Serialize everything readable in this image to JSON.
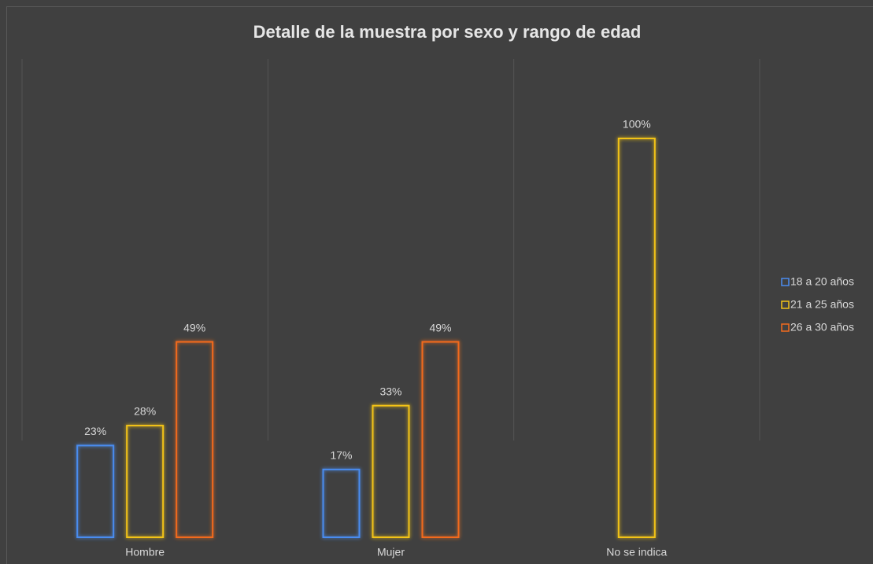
{
  "chart_data": {
    "type": "bar",
    "title": "Detalle de la muestra por sexo y rango de edad",
    "categories": [
      "Hombre",
      "Mujer",
      "No se indica"
    ],
    "series": [
      {
        "name": "18 a 20 años",
        "color": "#4a8cf0",
        "values": [
          23,
          17,
          null
        ],
        "value_labels": [
          "23%",
          "17%",
          null
        ]
      },
      {
        "name": "21 a 25 años",
        "color": "#f2c318",
        "values": [
          28,
          33,
          100
        ],
        "value_labels": [
          "28%",
          "33%",
          "100%"
        ]
      },
      {
        "name": "26 a 30 años",
        "color": "#f26b1d",
        "values": [
          49,
          49,
          null
        ],
        "value_labels": [
          "49%",
          "49%",
          null
        ]
      }
    ],
    "ylim": [
      0,
      100
    ],
    "legend": "right"
  }
}
